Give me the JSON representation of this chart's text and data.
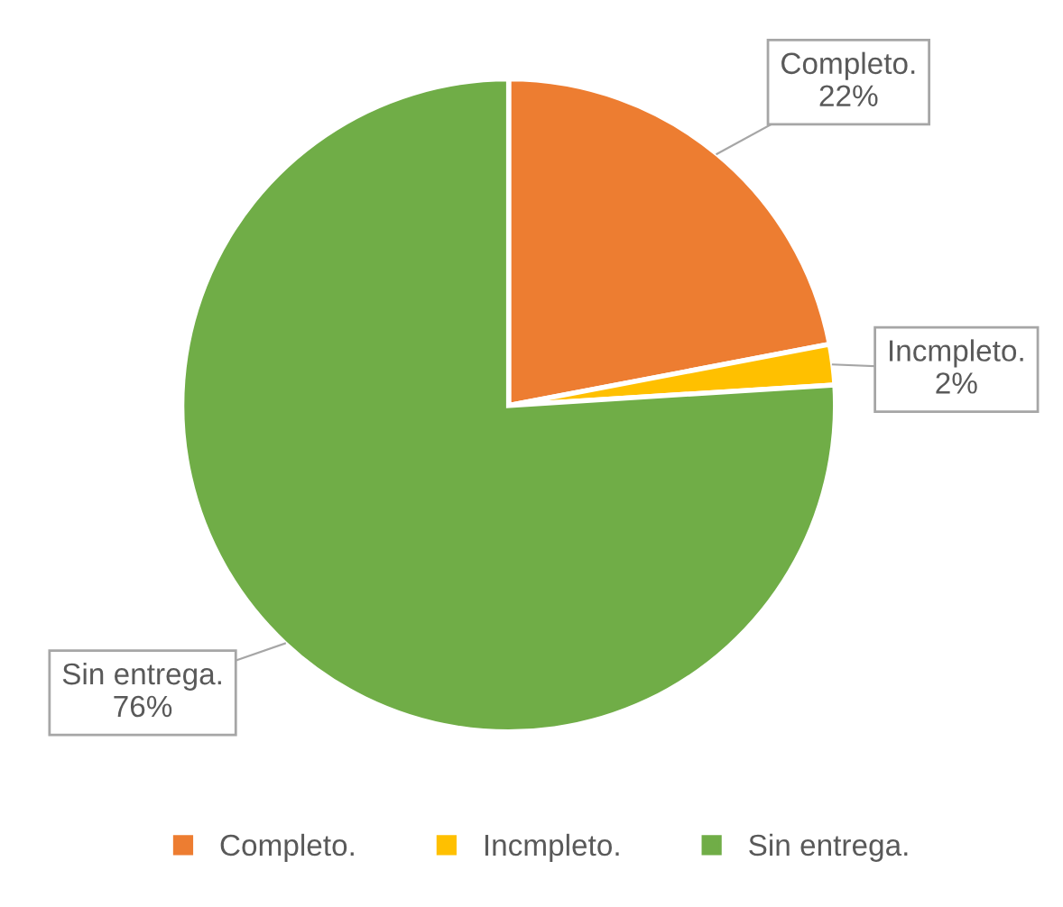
{
  "chart_data": {
    "type": "pie",
    "categories": [
      "Completo.",
      "Incmpleto.",
      "Sin entrega."
    ],
    "values": [
      22,
      2,
      76
    ],
    "colors": [
      "#ed7d31",
      "#ffc000",
      "#70ad47"
    ],
    "value_labels": [
      "22%",
      "2%",
      "76%"
    ],
    "legend": "bottom"
  }
}
